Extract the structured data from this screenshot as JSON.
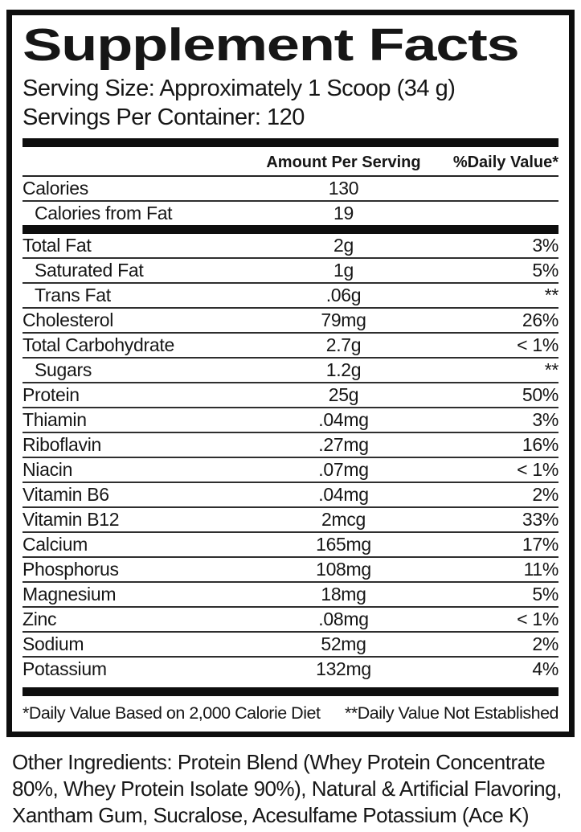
{
  "panel": {
    "title": "Supplement Facts",
    "serving_size_label": "Serving Size:",
    "serving_size_value": "Approximately 1 Scoop (34 g)",
    "servings_per_container_label": "Servings Per Container:",
    "servings_per_container_value": "120"
  },
  "table": {
    "columns": {
      "amount": "Amount Per Serving",
      "daily_value": "%Daily Value*"
    },
    "rows": [
      {
        "label": "Calories",
        "amount": "130",
        "dv": "",
        "indent": false,
        "thick_after": false
      },
      {
        "label": "Calories from Fat",
        "amount": "19",
        "dv": "",
        "indent": true,
        "thick_after": true
      },
      {
        "label": "Total Fat",
        "amount": "2g",
        "dv": "3%",
        "indent": false,
        "thick_after": false
      },
      {
        "label": "Saturated Fat",
        "amount": "1g",
        "dv": "5%",
        "indent": true,
        "thick_after": false
      },
      {
        "label": "Trans Fat",
        "amount": ".06g",
        "dv": "**",
        "indent": true,
        "thick_after": false
      },
      {
        "label": "Cholesterol",
        "amount": "79mg",
        "dv": "26%",
        "indent": false,
        "thick_after": false
      },
      {
        "label": "Total Carbohydrate",
        "amount": "2.7g",
        "dv": "< 1%",
        "indent": false,
        "thick_after": false
      },
      {
        "label": "Sugars",
        "amount": "1.2g",
        "dv": "**",
        "indent": true,
        "thick_after": false
      },
      {
        "label": "Protein",
        "amount": "25g",
        "dv": "50%",
        "indent": false,
        "thick_after": false
      },
      {
        "label": "Thiamin",
        "amount": ".04mg",
        "dv": "3%",
        "indent": false,
        "thick_after": false
      },
      {
        "label": "Riboflavin",
        "amount": ".27mg",
        "dv": "16%",
        "indent": false,
        "thick_after": false
      },
      {
        "label": "Niacin",
        "amount": ".07mg",
        "dv": "< 1%",
        "indent": false,
        "thick_after": false
      },
      {
        "label": "Vitamin B6",
        "amount": ".04mg",
        "dv": "2%",
        "indent": false,
        "thick_after": false
      },
      {
        "label": "Vitamin B12",
        "amount": "2mcg",
        "dv": "33%",
        "indent": false,
        "thick_after": false
      },
      {
        "label": "Calcium",
        "amount": "165mg",
        "dv": "17%",
        "indent": false,
        "thick_after": false
      },
      {
        "label": "Phosphorus",
        "amount": "108mg",
        "dv": "11%",
        "indent": false,
        "thick_after": false
      },
      {
        "label": "Magnesium",
        "amount": "18mg",
        "dv": "5%",
        "indent": false,
        "thick_after": false
      },
      {
        "label": "Zinc",
        "amount": ".08mg",
        "dv": "< 1%",
        "indent": false,
        "thick_after": false
      },
      {
        "label": "Sodium",
        "amount": "52mg",
        "dv": "2%",
        "indent": false,
        "thick_after": false
      },
      {
        "label": "Potassium",
        "amount": "132mg",
        "dv": "4%",
        "indent": false,
        "thick_after": false
      }
    ]
  },
  "footnotes": {
    "daily_value_note": "*Daily Value Based on 2,000 Calorie Diet",
    "not_established_note": "**Daily Value Not Established"
  },
  "other_ingredients": "Other Ingredients: Protein Blend (Whey Protein Concentrate 80%, Whey Protein Isolate 90%), Natural & Artificial Flavoring, Xantham Gum, Sucralose, Acesulfame Potassium (Ace K)",
  "colors": {
    "ink": "#161616",
    "background": "#ffffff"
  }
}
